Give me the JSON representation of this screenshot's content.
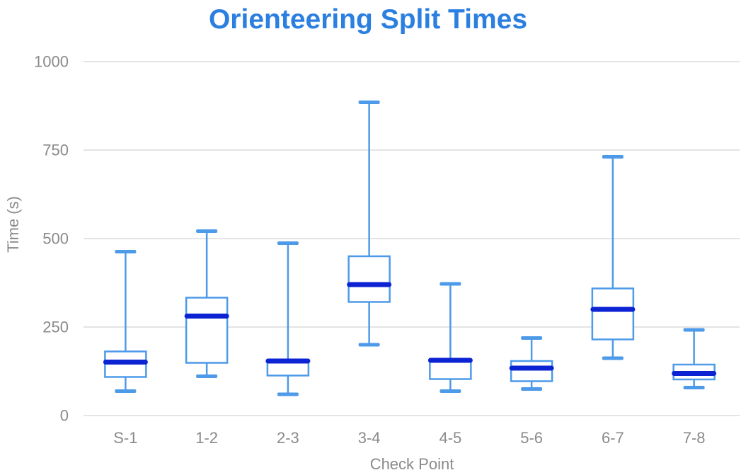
{
  "colors": {
    "title": "#2b7fe0",
    "box_stroke": "#4d9ae9",
    "box_fill": "#ffffff",
    "median": "#0b23d3",
    "axis_text": "#8a8a8a",
    "gridline": "#e4e4e4",
    "background": "#ffffff"
  },
  "chart_data": {
    "type": "box",
    "title": "Orienteering Split Times",
    "xlabel": "Check Point",
    "ylabel": "Time (s)",
    "categories": [
      "S-1",
      "1-2",
      "2-3",
      "3-4",
      "4-5",
      "5-6",
      "6-7",
      "7-8"
    ],
    "boxes": [
      {
        "category": "S-1",
        "min": 69,
        "q1": 109,
        "median": 151,
        "q3": 181,
        "max": 463
      },
      {
        "category": "1-2",
        "min": 111,
        "q1": 149,
        "median": 281,
        "q3": 333,
        "max": 521
      },
      {
        "category": "2-3",
        "min": 60,
        "q1": 113,
        "median": 154,
        "q3": 158,
        "max": 487
      },
      {
        "category": "3-4",
        "min": 200,
        "q1": 321,
        "median": 370,
        "q3": 450,
        "max": 885
      },
      {
        "category": "4-5",
        "min": 69,
        "q1": 103,
        "median": 156,
        "q3": 159,
        "max": 372
      },
      {
        "category": "5-6",
        "min": 75,
        "q1": 97,
        "median": 134,
        "q3": 154,
        "max": 219
      },
      {
        "category": "6-7",
        "min": 162,
        "q1": 215,
        "median": 300,
        "q3": 359,
        "max": 731
      },
      {
        "category": "7-8",
        "min": 79,
        "q1": 102,
        "median": 119,
        "q3": 144,
        "max": 242
      }
    ],
    "ylim": [
      0,
      1000
    ],
    "yticks": [
      0,
      250,
      500,
      750,
      1000
    ],
    "grid": "horizontal",
    "legend": "none"
  }
}
